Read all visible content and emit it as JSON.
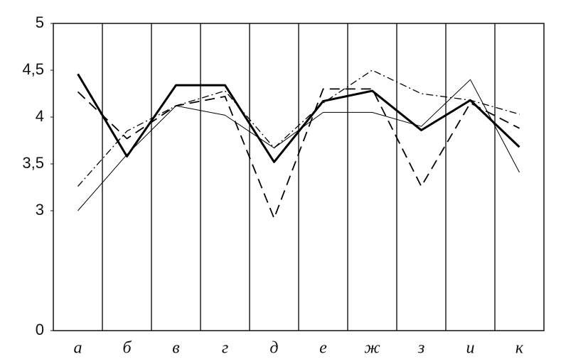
{
  "chart_data": {
    "type": "line",
    "categories": [
      "а",
      "б",
      "в",
      "г",
      "д",
      "е",
      "ж",
      "з",
      "и",
      "к"
    ],
    "ylim": [
      0,
      5
    ],
    "yticks": [
      0,
      3,
      {
        "value": 3.5,
        "label": "3,5"
      },
      4,
      {
        "value": 4.5,
        "label": "4,5"
      },
      5
    ],
    "series": [
      {
        "color": "#000",
        "width": 3,
        "dash": "none",
        "values": [
          4.46,
          3.58,
          4.34,
          4.34,
          3.52,
          4.17,
          4.28,
          3.86,
          4.18,
          3.68
        ]
      },
      {
        "color": "#000",
        "width": 1.8,
        "dash": "14 8",
        "values": [
          4.27,
          3.77,
          4.12,
          4.22,
          2.81,
          4.3,
          4.3,
          3.26,
          4.15,
          3.88
        ]
      },
      {
        "color": "#000",
        "width": 1.3,
        "dash": "10 4 2 4",
        "values": [
          3.26,
          3.85,
          4.12,
          4.28,
          3.67,
          4.15,
          4.5,
          4.25,
          4.18,
          4.03
        ]
      },
      {
        "color": "#000",
        "width": 1,
        "dash": "none",
        "values": [
          3.0,
          3.6,
          4.12,
          4.02,
          3.67,
          4.05,
          4.05,
          3.9,
          4.4,
          3.41
        ]
      }
    ]
  }
}
